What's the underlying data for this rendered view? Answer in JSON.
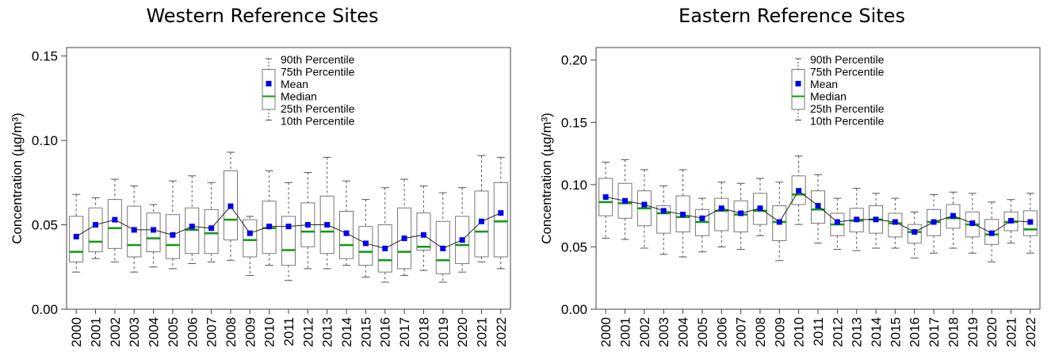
{
  "chart_data": [
    {
      "type": "box",
      "title": "Western Reference Sites",
      "xlabel": "",
      "ylabel": "Concentration (µg/m³)",
      "ylim": [
        0,
        0.155
      ],
      "yticks": [
        "0.00",
        "0.05",
        "0.10",
        "0.15"
      ],
      "ytick_values": [
        0,
        0.05,
        0.1,
        0.15
      ],
      "categories": [
        "2000",
        "2001",
        "2002",
        "2003",
        "2004",
        "2005",
        "2006",
        "2007",
        "2008",
        "2009",
        "2010",
        "2011",
        "2012",
        "2013",
        "2014",
        "2015",
        "2016",
        "2017",
        "2018",
        "2019",
        "2020",
        "2021",
        "2022"
      ],
      "p10": [
        0.022,
        0.03,
        0.028,
        0.022,
        0.025,
        0.024,
        0.027,
        0.028,
        0.029,
        0.02,
        0.026,
        0.017,
        0.024,
        0.024,
        0.026,
        0.019,
        0.016,
        0.02,
        0.023,
        0.016,
        0.022,
        0.028,
        0.024
      ],
      "p25": [
        0.028,
        0.034,
        0.036,
        0.031,
        0.034,
        0.03,
        0.033,
        0.033,
        0.041,
        0.031,
        0.033,
        0.026,
        0.037,
        0.033,
        0.03,
        0.026,
        0.022,
        0.024,
        0.035,
        0.021,
        0.027,
        0.031,
        0.031
      ],
      "median": [
        0.034,
        0.04,
        0.048,
        0.038,
        0.042,
        0.038,
        0.047,
        0.045,
        0.053,
        0.041,
        0.048,
        0.035,
        0.046,
        0.046,
        0.038,
        0.034,
        0.029,
        0.034,
        0.037,
        0.029,
        0.038,
        0.046,
        0.052
      ],
      "mean": [
        0.043,
        0.05,
        0.053,
        0.047,
        0.047,
        0.044,
        0.049,
        0.048,
        0.061,
        0.045,
        0.049,
        0.049,
        0.05,
        0.05,
        0.045,
        0.039,
        0.036,
        0.042,
        0.044,
        0.036,
        0.041,
        0.052,
        0.057
      ],
      "p75": [
        0.055,
        0.06,
        0.065,
        0.061,
        0.057,
        0.056,
        0.06,
        0.059,
        0.082,
        0.053,
        0.064,
        0.055,
        0.063,
        0.067,
        0.058,
        0.049,
        0.05,
        0.06,
        0.057,
        0.052,
        0.055,
        0.07,
        0.075
      ],
      "p90": [
        0.068,
        0.066,
        0.077,
        0.073,
        0.062,
        0.076,
        0.079,
        0.075,
        0.093,
        0.055,
        0.082,
        0.075,
        0.081,
        0.09,
        0.076,
        0.065,
        0.072,
        0.077,
        0.073,
        0.069,
        0.072,
        0.091,
        0.09
      ],
      "legend": [
        "90th Percentile",
        "75th Percentile",
        "Mean",
        "Median",
        "25th Percentile",
        "10th Percentile"
      ],
      "legend_position": "top-center",
      "grid": false,
      "colors": {
        "mean": "#0000ee",
        "median": "#119911",
        "box": "#777777",
        "axis": "#444444"
      }
    },
    {
      "type": "box",
      "title": "Eastern Reference Sites",
      "xlabel": "",
      "ylabel": "Concentration (µg/m³)",
      "ylim": [
        0,
        0.21
      ],
      "yticks": [
        "0.00",
        "0.05",
        "0.10",
        "0.15",
        "0.20"
      ],
      "ytick_values": [
        0,
        0.05,
        0.1,
        0.15,
        0.2
      ],
      "categories": [
        "2000",
        "2001",
        "2002",
        "2003",
        "2004",
        "2005",
        "2006",
        "2007",
        "2008",
        "2009",
        "2010",
        "2011",
        "2012",
        "2013",
        "2014",
        "2015",
        "2016",
        "2017",
        "2018",
        "2019",
        "2020",
        "2021",
        "2022"
      ],
      "p10": [
        0.057,
        0.056,
        0.049,
        0.044,
        0.042,
        0.046,
        0.05,
        0.048,
        0.059,
        0.039,
        0.068,
        0.053,
        0.048,
        0.047,
        0.049,
        0.049,
        0.041,
        0.045,
        0.049,
        0.045,
        0.038,
        0.053,
        0.045
      ],
      "p25": [
        0.075,
        0.073,
        0.067,
        0.061,
        0.062,
        0.059,
        0.063,
        0.062,
        0.068,
        0.055,
        0.084,
        0.069,
        0.059,
        0.062,
        0.061,
        0.058,
        0.053,
        0.059,
        0.065,
        0.058,
        0.052,
        0.063,
        0.059
      ],
      "median": [
        0.086,
        0.085,
        0.081,
        0.077,
        0.074,
        0.07,
        0.079,
        0.076,
        0.079,
        0.07,
        0.092,
        0.08,
        0.068,
        0.071,
        0.072,
        0.069,
        0.062,
        0.07,
        0.073,
        0.068,
        0.06,
        0.07,
        0.064
      ],
      "mean": [
        0.09,
        0.087,
        0.084,
        0.079,
        0.076,
        0.073,
        0.081,
        0.077,
        0.081,
        0.07,
        0.095,
        0.083,
        0.07,
        0.072,
        0.072,
        0.07,
        0.062,
        0.07,
        0.075,
        0.069,
        0.061,
        0.071,
        0.07
      ],
      "p75": [
        0.105,
        0.101,
        0.095,
        0.083,
        0.091,
        0.08,
        0.089,
        0.087,
        0.093,
        0.083,
        0.107,
        0.095,
        0.077,
        0.081,
        0.083,
        0.077,
        0.068,
        0.08,
        0.084,
        0.078,
        0.072,
        0.078,
        0.079
      ],
      "p90": [
        0.118,
        0.12,
        0.112,
        0.099,
        0.112,
        0.089,
        0.102,
        0.101,
        0.105,
        0.102,
        0.123,
        0.108,
        0.089,
        0.097,
        0.093,
        0.089,
        0.078,
        0.092,
        0.094,
        0.093,
        0.086,
        0.088,
        0.093
      ],
      "legend": [
        "90th Percentile",
        "75th Percentile",
        "Mean",
        "Median",
        "25th Percentile",
        "10th Percentile"
      ],
      "legend_position": "top-center",
      "grid": false,
      "colors": {
        "mean": "#0000ee",
        "median": "#119911",
        "box": "#777777",
        "axis": "#444444"
      }
    }
  ]
}
